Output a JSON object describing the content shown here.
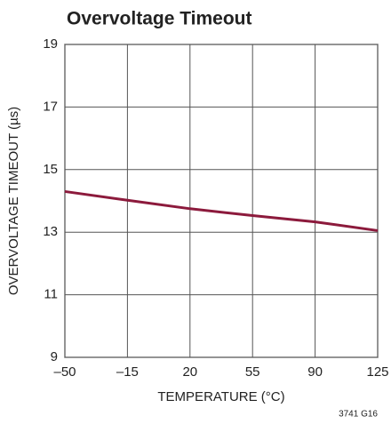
{
  "chart_data": {
    "type": "line",
    "title": "Overvoltage Timeout",
    "x_label": "TEMPERATURE (°C)",
    "y_label": "OVERVOLTAGE TIMEOUT (µs)",
    "note": "3741 G16",
    "x": [
      -50,
      -15,
      20,
      55,
      90,
      125
    ],
    "values": [
      14.3,
      14.02,
      13.75,
      13.53,
      13.33,
      13.05
    ],
    "color": "#8c1a3c",
    "xlim": [
      -50,
      125
    ],
    "xticks": [
      {
        "value": -50,
        "label": "–50"
      },
      {
        "value": -15,
        "label": "–15"
      },
      20,
      55,
      90,
      125
    ],
    "ylim": [
      9,
      19
    ],
    "yticks": [
      9,
      11,
      13,
      15,
      17,
      19
    ],
    "grid": true
  }
}
